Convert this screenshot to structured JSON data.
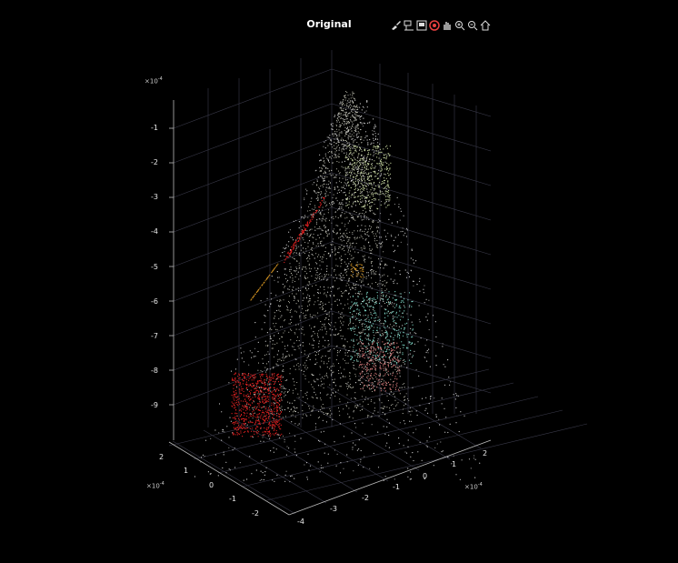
{
  "figure": {
    "title": "Original"
  },
  "toolbar": {
    "icons": [
      "brush-icon",
      "data-tips-icon",
      "export-icon",
      "rotate-3d-icon",
      "pan-icon",
      "zoom-in-icon",
      "zoom-out-icon",
      "restore-view-icon"
    ]
  },
  "axes": {
    "z_exponent": "×10",
    "z_exponent_power": "-4",
    "z_ticks": [
      "-1",
      "-2",
      "-3",
      "-4",
      "-5",
      "-6",
      "-7",
      "-8",
      "-9"
    ],
    "y_exponent": "×10",
    "y_exponent_power": "-4",
    "y_ticks": [
      "2",
      "1",
      "0",
      "-1",
      "-2"
    ],
    "x_exponent": "×10",
    "x_exponent_power": "-4",
    "x_ticks": [
      "-4",
      "-3",
      "-2",
      "-1",
      "0",
      "1",
      "2"
    ]
  },
  "colors": {
    "background": "#000000",
    "grid": "#4a4a5a",
    "cloud_main": "#c8c8b8",
    "cloud_green": "#c8d8a0",
    "cloud_cyan": "#7fd8c8",
    "cloud_red": "#e02020",
    "cloud_pink": "#e08080",
    "cloud_orange": "#d09020"
  }
}
